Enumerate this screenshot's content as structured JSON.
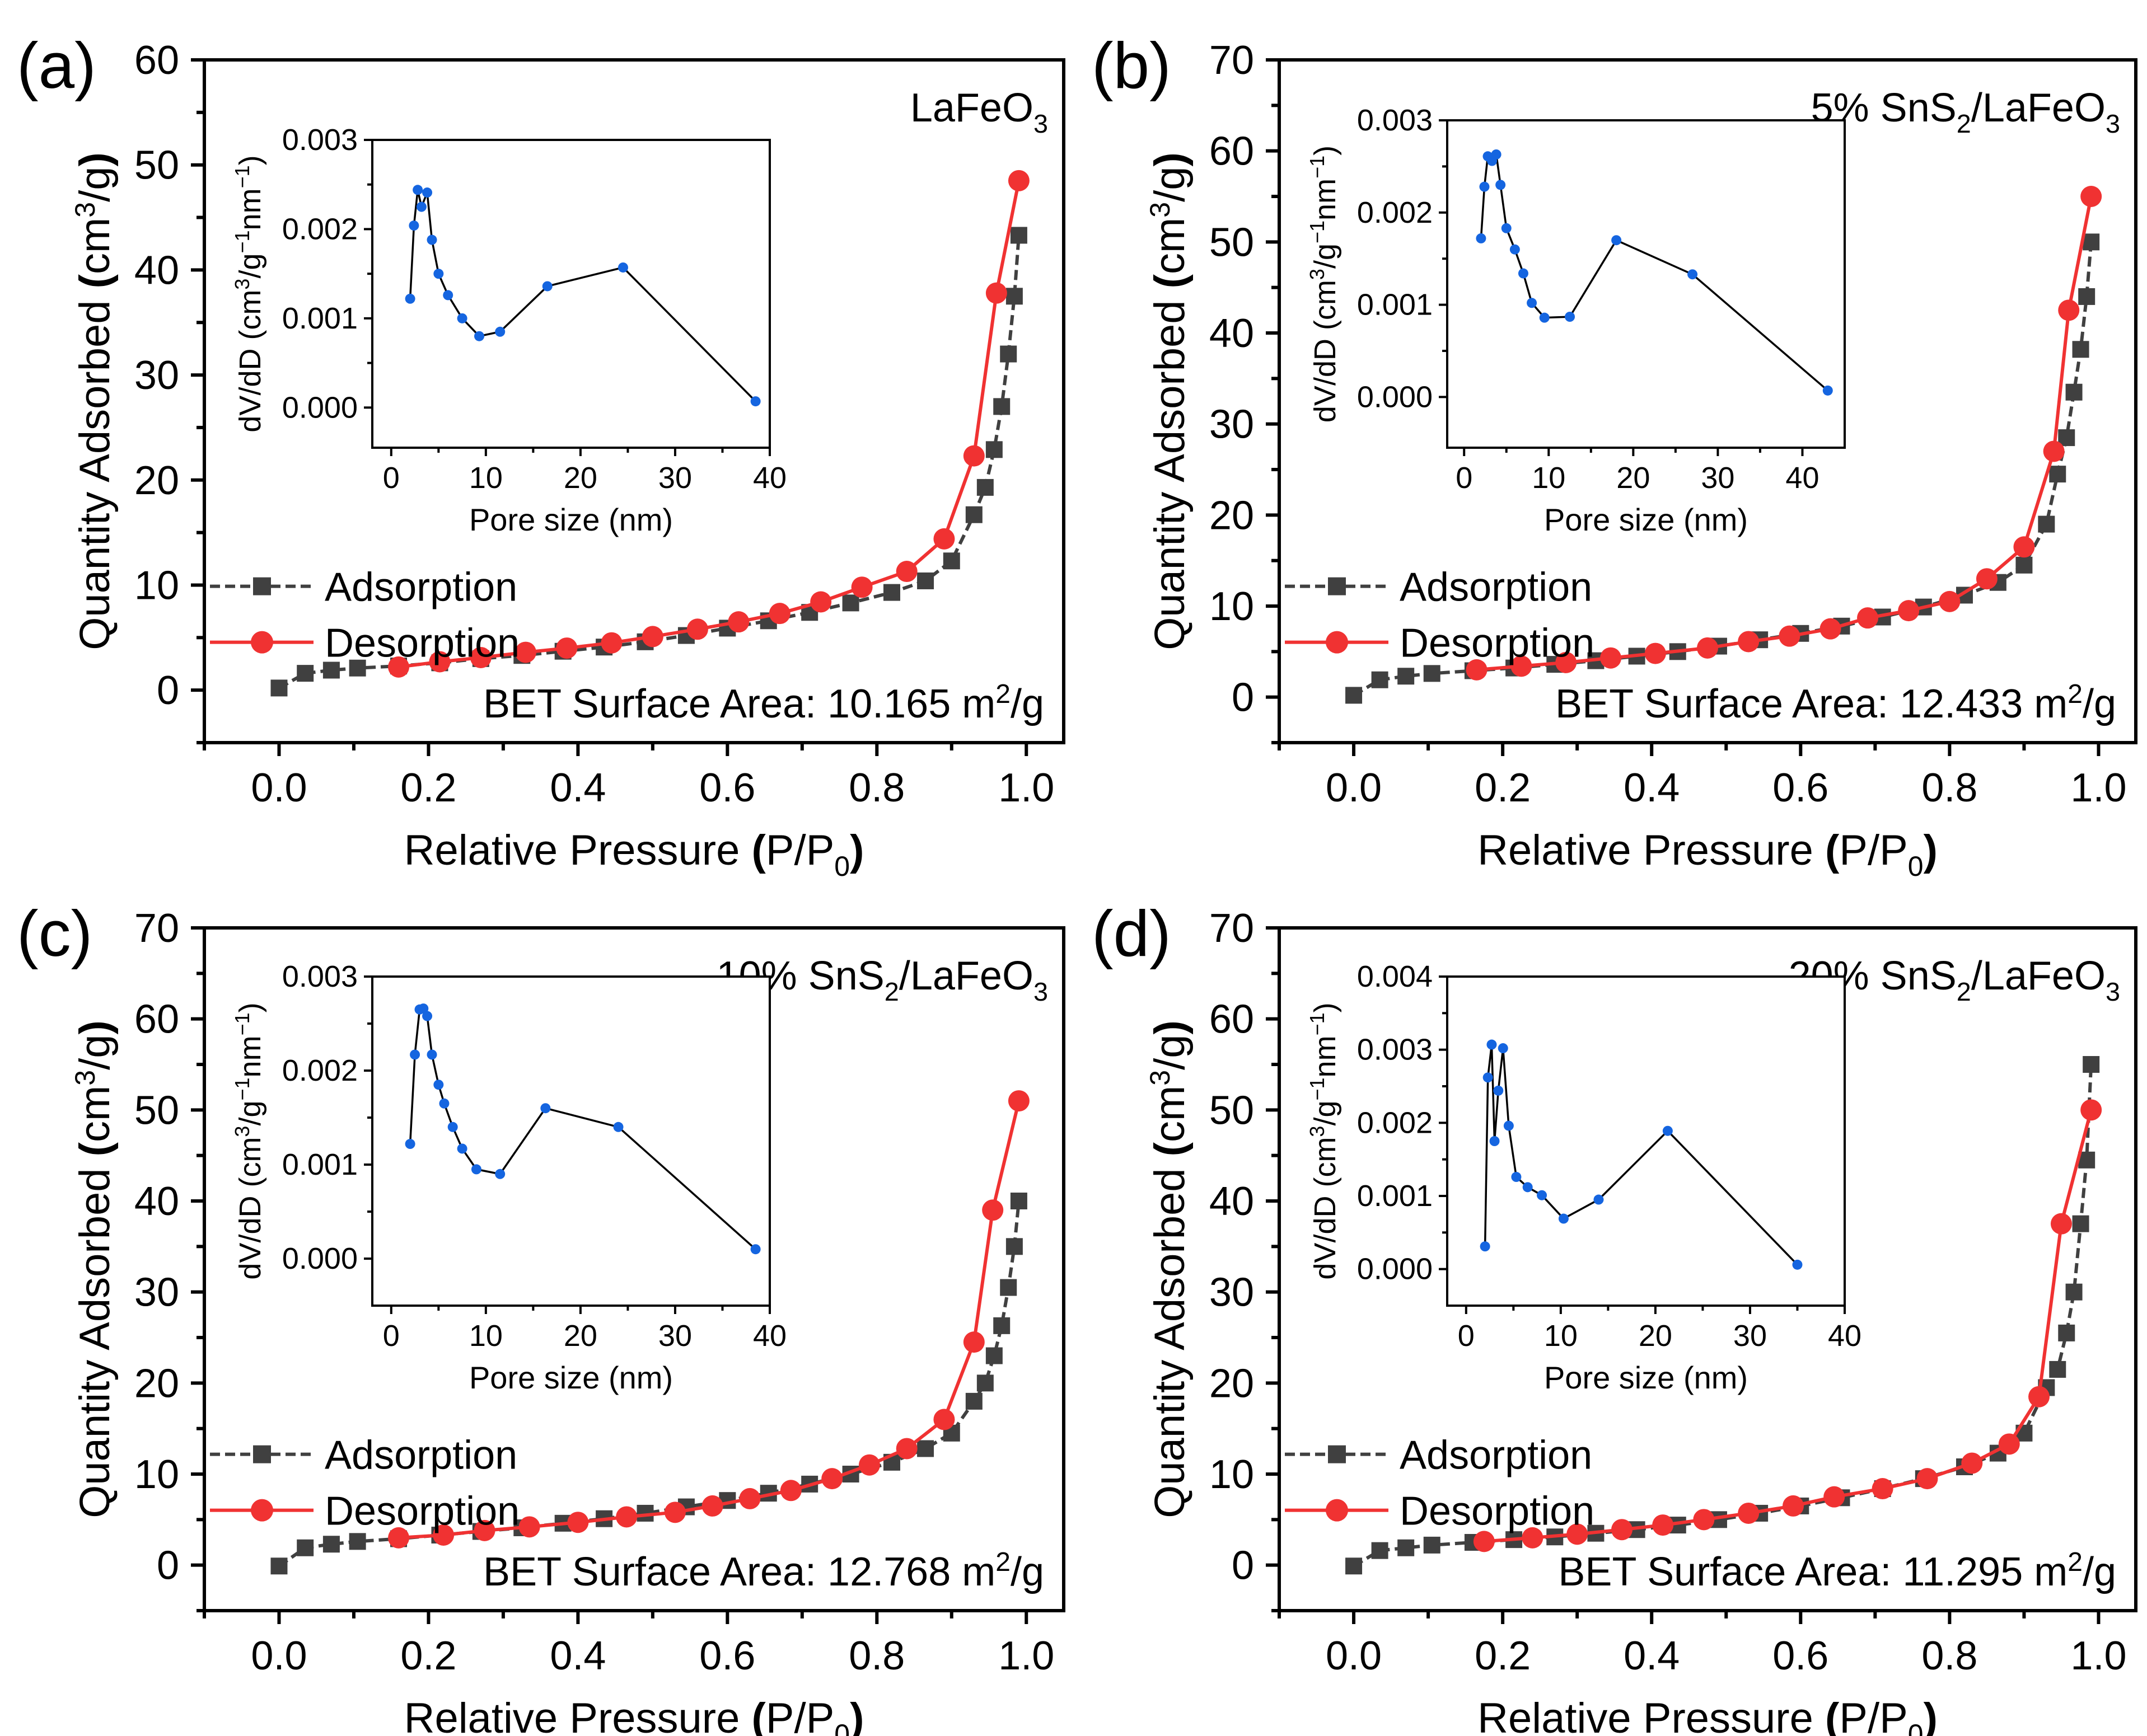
{
  "figure": {
    "legend_labels": {
      "adsorption": "Adsorption",
      "desorption": "Desorption"
    },
    "colors": {
      "adsorption": "#404040",
      "desorption": "#f03232",
      "inset": "#1565e0",
      "inset_line": "#000000"
    }
  },
  "chart_data": [
    {
      "type": "scatter",
      "panel_label": "(a)",
      "sample": "LaFeO3",
      "xlabel": "Relative Pressure (P/P0)",
      "ylabel": "Quantity Adsorbed (cm3/g)",
      "xlim": [
        -0.1,
        1.05
      ],
      "ylim": [
        -5,
        60
      ],
      "xticks": [
        "0.0",
        "0.2",
        "0.4",
        "0.6",
        "0.8",
        "1.0"
      ],
      "yticks": [
        "0",
        "10",
        "20",
        "30",
        "40",
        "50",
        "60"
      ],
      "xtick_values": [
        0,
        0.2,
        0.4,
        0.6,
        0.8,
        1.0
      ],
      "ytick_values": [
        0,
        10,
        20,
        30,
        40,
        50,
        60
      ],
      "annotation": {
        "prefix": "BET Surface Area: ",
        "value": "10.165",
        "unit": " m",
        "sup": "2",
        "suffix": "/g"
      },
      "series": [
        {
          "name": "Adsorption",
          "x": [
            0.0,
            0.035,
            0.07,
            0.105,
            0.16,
            0.215,
            0.27,
            0.325,
            0.38,
            0.435,
            0.49,
            0.545,
            0.6,
            0.655,
            0.71,
            0.765,
            0.82,
            0.865,
            0.9,
            0.93,
            0.945,
            0.957,
            0.967,
            0.976,
            0.984,
            0.99
          ],
          "y": [
            0.2,
            1.6,
            1.9,
            2.1,
            2.3,
            2.6,
            3.0,
            3.3,
            3.7,
            4.1,
            4.6,
            5.2,
            5.9,
            6.6,
            7.4,
            8.3,
            9.3,
            10.4,
            12.3,
            16.7,
            19.3,
            22.9,
            27.0,
            32.0,
            37.5,
            43.3
          ]
        },
        {
          "name": "Desorption",
          "x": [
            0.99,
            0.96,
            0.93,
            0.89,
            0.84,
            0.78,
            0.725,
            0.67,
            0.615,
            0.56,
            0.5,
            0.445,
            0.385,
            0.33,
            0.27,
            0.215,
            0.16
          ],
          "y": [
            48.5,
            37.8,
            22.3,
            14.4,
            11.3,
            9.8,
            8.4,
            7.3,
            6.5,
            5.8,
            5.1,
            4.5,
            4.0,
            3.6,
            3.1,
            2.7,
            2.2
          ]
        }
      ],
      "inset": {
        "xlabel": "Pore size (nm)",
        "ylabel": "dV/dD (cm3/g-1nm-1)",
        "xlim": [
          -2,
          40
        ],
        "ylim": [
          -0.00045,
          0.003
        ],
        "xticks": [
          "0",
          "10",
          "20",
          "30",
          "40"
        ],
        "yticks": [
          "0.000",
          "0.001",
          "0.002",
          "0.003"
        ],
        "xtick_values": [
          0,
          10,
          20,
          30,
          40
        ],
        "ytick_values": [
          0,
          0.001,
          0.002,
          0.003
        ],
        "x": [
          2.0,
          2.4,
          2.8,
          3.2,
          3.8,
          4.3,
          5.0,
          6.0,
          7.5,
          9.3,
          11.5,
          16.5,
          24.5,
          38.5
        ],
        "y": [
          0.00122,
          0.00204,
          0.00244,
          0.00225,
          0.00241,
          0.00188,
          0.0015,
          0.00126,
          0.001,
          0.0008,
          0.00085,
          0.00136,
          0.00157,
          7e-05
        ]
      }
    },
    {
      "type": "scatter",
      "panel_label": "(b)",
      "sample": "5% SnS2/LaFeO3",
      "xlabel": "Relative Pressure (P/P0)",
      "ylabel": "Quantity Adsorbed (cm3/g)",
      "xlim": [
        -0.1,
        1.05
      ],
      "ylim": [
        -5,
        70
      ],
      "xticks": [
        "0.0",
        "0.2",
        "0.4",
        "0.6",
        "0.8",
        "1.0"
      ],
      "yticks": [
        "0",
        "10",
        "20",
        "30",
        "40",
        "50",
        "60",
        "70"
      ],
      "xtick_values": [
        0,
        0.2,
        0.4,
        0.6,
        0.8,
        1.0
      ],
      "ytick_values": [
        0,
        10,
        20,
        30,
        40,
        50,
        60,
        70
      ],
      "annotation": {
        "prefix": "BET Surface Area: ",
        "value": "12.433",
        "unit": " m",
        "sup": "2",
        "suffix": "/g"
      },
      "series": [
        {
          "name": "Adsorption",
          "x": [
            0.0,
            0.035,
            0.07,
            0.105,
            0.16,
            0.215,
            0.27,
            0.325,
            0.38,
            0.435,
            0.49,
            0.545,
            0.6,
            0.655,
            0.71,
            0.765,
            0.82,
            0.865,
            0.9,
            0.93,
            0.945,
            0.957,
            0.967,
            0.976,
            0.984,
            0.99
          ],
          "y": [
            0.2,
            1.9,
            2.3,
            2.6,
            2.9,
            3.2,
            3.6,
            4.0,
            4.5,
            5.0,
            5.6,
            6.3,
            7.0,
            7.8,
            8.8,
            9.9,
            11.2,
            12.6,
            14.5,
            19.0,
            24.5,
            28.5,
            33.5,
            38.2,
            44.0,
            50.0
          ]
        },
        {
          "name": "Desorption",
          "x": [
            0.99,
            0.96,
            0.94,
            0.9,
            0.85,
            0.8,
            0.745,
            0.69,
            0.64,
            0.585,
            0.53,
            0.475,
            0.405,
            0.345,
            0.285,
            0.225,
            0.165
          ],
          "y": [
            55.0,
            42.5,
            27.0,
            16.5,
            13.0,
            10.5,
            9.5,
            8.7,
            7.5,
            6.7,
            6.1,
            5.4,
            4.8,
            4.3,
            3.8,
            3.4,
            3.0
          ]
        }
      ],
      "inset": {
        "xlabel": "Pore size (nm)",
        "ylabel": "dV/dD (cm3/g-1nm-1)",
        "xlim": [
          -2,
          45
        ],
        "ylim": [
          -0.00055,
          0.003
        ],
        "xticks": [
          "0",
          "10",
          "20",
          "30",
          "40"
        ],
        "yticks": [
          "0.000",
          "0.001",
          "0.002",
          "0.003"
        ],
        "xtick_values": [
          0,
          10,
          20,
          30,
          40
        ],
        "ytick_values": [
          0,
          0.001,
          0.002,
          0.003
        ],
        "x": [
          2.0,
          2.4,
          2.8,
          3.3,
          3.8,
          4.3,
          5.0,
          6.0,
          7.0,
          8.0,
          9.5,
          12.5,
          18.0,
          27.0,
          43.0
        ],
        "y": [
          0.00172,
          0.00228,
          0.00261,
          0.00256,
          0.00263,
          0.0023,
          0.00183,
          0.0016,
          0.00134,
          0.00102,
          0.00086,
          0.00087,
          0.0017,
          0.00133,
          7e-05
        ]
      }
    },
    {
      "type": "scatter",
      "panel_label": "(c)",
      "sample": "10% SnS2/LaFeO3",
      "xlabel": "Relative Pressure (P/P0)",
      "ylabel": "Quantity Adsorbed (cm3/g)",
      "xlim": [
        -0.1,
        1.05
      ],
      "ylim": [
        -5,
        70
      ],
      "xticks": [
        "0.0",
        "0.2",
        "0.4",
        "0.6",
        "0.8",
        "1.0"
      ],
      "yticks": [
        "0",
        "10",
        "20",
        "30",
        "40",
        "50",
        "60",
        "70"
      ],
      "xtick_values": [
        0,
        0.2,
        0.4,
        0.6,
        0.8,
        1.0
      ],
      "ytick_values": [
        0,
        10,
        20,
        30,
        40,
        50,
        60,
        70
      ],
      "annotation": {
        "prefix": "BET Surface Area: ",
        "value": "12.768",
        "unit": " m",
        "sup": "2",
        "suffix": "/g"
      },
      "series": [
        {
          "name": "Adsorption",
          "x": [
            0.0,
            0.035,
            0.07,
            0.105,
            0.16,
            0.215,
            0.27,
            0.325,
            0.38,
            0.435,
            0.49,
            0.545,
            0.6,
            0.655,
            0.71,
            0.765,
            0.82,
            0.865,
            0.9,
            0.93,
            0.945,
            0.957,
            0.967,
            0.976,
            0.984,
            0.99
          ],
          "y": [
            -0.1,
            1.9,
            2.3,
            2.6,
            2.9,
            3.3,
            3.7,
            4.1,
            4.6,
            5.1,
            5.7,
            6.4,
            7.1,
            7.9,
            8.9,
            10.0,
            11.3,
            12.8,
            14.5,
            18.0,
            20.0,
            23.0,
            26.3,
            30.5,
            35.0,
            40.0
          ]
        },
        {
          "name": "Desorption",
          "x": [
            0.99,
            0.955,
            0.93,
            0.89,
            0.84,
            0.79,
            0.74,
            0.685,
            0.63,
            0.58,
            0.53,
            0.465,
            0.4,
            0.335,
            0.275,
            0.22,
            0.16
          ],
          "y": [
            51.0,
            39.0,
            24.5,
            16.0,
            12.8,
            11.0,
            9.5,
            8.2,
            7.3,
            6.5,
            5.8,
            5.3,
            4.7,
            4.2,
            3.8,
            3.3,
            3.0
          ]
        }
      ],
      "inset": {
        "xlabel": "Pore size (nm)",
        "ylabel": "dV/dD (cm3/g-1nm-1)",
        "xlim": [
          -2,
          40
        ],
        "ylim": [
          -0.0005,
          0.003
        ],
        "xticks": [
          "0",
          "10",
          "20",
          "30",
          "40"
        ],
        "yticks": [
          "0.000",
          "0.001",
          "0.002",
          "0.003"
        ],
        "xtick_values": [
          0,
          10,
          20,
          30,
          40
        ],
        "ytick_values": [
          0,
          0.001,
          0.002,
          0.003
        ],
        "x": [
          2.0,
          2.5,
          3.0,
          3.4,
          3.8,
          4.3,
          5.0,
          5.6,
          6.5,
          7.5,
          9.0,
          11.5,
          16.3,
          24.0,
          38.5
        ],
        "y": [
          0.00122,
          0.00217,
          0.00265,
          0.00266,
          0.00258,
          0.00217,
          0.00185,
          0.00165,
          0.0014,
          0.00117,
          0.00095,
          0.0009,
          0.0016,
          0.0014,
          0.0001
        ]
      }
    },
    {
      "type": "scatter",
      "panel_label": "(d)",
      "sample": "20% SnS2/LaFeO3",
      "xlabel": "Relative Pressure (P/P0)",
      "ylabel": "Quantity Adsorbed (cm3/g)",
      "xlim": [
        -0.1,
        1.05
      ],
      "ylim": [
        -5,
        70
      ],
      "xticks": [
        "0.0",
        "0.2",
        "0.4",
        "0.6",
        "0.8",
        "1.0"
      ],
      "yticks": [
        "0",
        "10",
        "20",
        "30",
        "40",
        "50",
        "60",
        "70"
      ],
      "xtick_values": [
        0,
        0.2,
        0.4,
        0.6,
        0.8,
        1.0
      ],
      "ytick_values": [
        0,
        10,
        20,
        30,
        40,
        50,
        60,
        70
      ],
      "annotation": {
        "prefix": "BET Surface Area: ",
        "value": "11.295",
        "unit": " m",
        "sup": "2",
        "suffix": "/g"
      },
      "series": [
        {
          "name": "Adsorption",
          "x": [
            0.0,
            0.035,
            0.07,
            0.105,
            0.16,
            0.215,
            0.27,
            0.325,
            0.38,
            0.435,
            0.49,
            0.545,
            0.6,
            0.655,
            0.71,
            0.765,
            0.82,
            0.865,
            0.9,
            0.93,
            0.945,
            0.957,
            0.967,
            0.976,
            0.984,
            0.99
          ],
          "y": [
            -0.1,
            1.6,
            1.9,
            2.2,
            2.5,
            2.8,
            3.1,
            3.5,
            3.9,
            4.4,
            5.0,
            5.7,
            6.5,
            7.4,
            8.4,
            9.5,
            10.8,
            12.3,
            14.5,
            19.5,
            21.5,
            25.5,
            30.0,
            37.5,
            44.5,
            55.0
          ]
        },
        {
          "name": "Desorption",
          "x": [
            0.99,
            0.95,
            0.92,
            0.88,
            0.83,
            0.77,
            0.71,
            0.645,
            0.59,
            0.53,
            0.47,
            0.415,
            0.36,
            0.3,
            0.24,
            0.175
          ],
          "y": [
            50.0,
            37.5,
            18.5,
            13.3,
            11.2,
            9.5,
            8.4,
            7.5,
            6.5,
            5.7,
            5.0,
            4.4,
            3.9,
            3.4,
            3.0,
            2.6
          ]
        }
      ],
      "inset": {
        "xlabel": "Pore size (nm)",
        "ylabel": "dV/dD (cm3/g-1nm-1)",
        "xlim": [
          -2,
          40
        ],
        "ylim": [
          -0.0005,
          0.004
        ],
        "xticks": [
          "0",
          "10",
          "20",
          "30",
          "40"
        ],
        "yticks": [
          "0.000",
          "0.001",
          "0.002",
          "0.003",
          "0.004"
        ],
        "xtick_values": [
          0,
          10,
          20,
          30,
          40
        ],
        "ytick_values": [
          0,
          0.001,
          0.002,
          0.003,
          0.004
        ],
        "x": [
          2.0,
          2.3,
          2.7,
          3.0,
          3.4,
          3.9,
          4.5,
          5.3,
          6.5,
          8.0,
          10.3,
          14.0,
          21.3,
          35.0
        ],
        "y": [
          0.00031,
          0.00262,
          0.00307,
          0.00175,
          0.00244,
          0.00302,
          0.00196,
          0.00126,
          0.00112,
          0.00101,
          0.00069,
          0.00095,
          0.00189,
          6e-05
        ]
      }
    }
  ]
}
